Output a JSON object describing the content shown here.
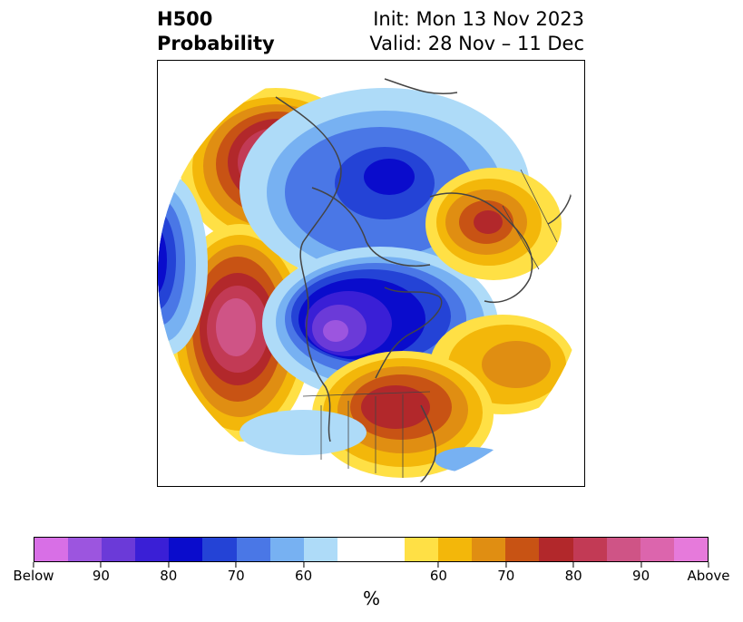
{
  "title": {
    "left_line1": "H500",
    "left_line2": "Probability",
    "right_line1": "Init: Mon 13 Nov 2023",
    "right_line2": "Valid: 28 Nov – 11 Dec"
  },
  "colorbar": {
    "unit_label": "%",
    "colors": [
      "#d86fe6",
      "#9c55df",
      "#6b3ad8",
      "#3a1fd6",
      "#0a0ccc",
      "#2443d6",
      "#4a77e6",
      "#77b1f2",
      "#aedbf8",
      "#ffffff",
      "#ffffff",
      "#ffe045",
      "#f3b70a",
      "#e08e12",
      "#c85314",
      "#b2282b",
      "#c23a55",
      "#cf5486",
      "#dc65ad",
      "#e67adb"
    ],
    "tick_labels": [
      "Below",
      "90",
      "80",
      "70",
      "60",
      "60",
      "70",
      "80",
      "90",
      "Above"
    ],
    "tick_positions_index": [
      0,
      2,
      4,
      6,
      8,
      12,
      14,
      16,
      18,
      20
    ]
  },
  "map": {
    "projection": "north-polar-stereographic",
    "anomalies": [
      {
        "name": "pacific-ridge-west",
        "sign": "above",
        "peak": 90
      },
      {
        "name": "alaska-ridge",
        "sign": "above",
        "peak": 90
      },
      {
        "name": "siberia-trough",
        "sign": "below",
        "peak": 80
      },
      {
        "name": "canada-trough",
        "sign": "below",
        "peak": 95
      },
      {
        "name": "eastern-us-ridge",
        "sign": "above",
        "peak": 80
      },
      {
        "name": "europe-ridge",
        "sign": "above",
        "peak": 80
      },
      {
        "name": "atlantic-ridge",
        "sign": "above",
        "peak": 70
      },
      {
        "name": "western-pacific-trough",
        "sign": "below",
        "peak": 80
      }
    ]
  }
}
